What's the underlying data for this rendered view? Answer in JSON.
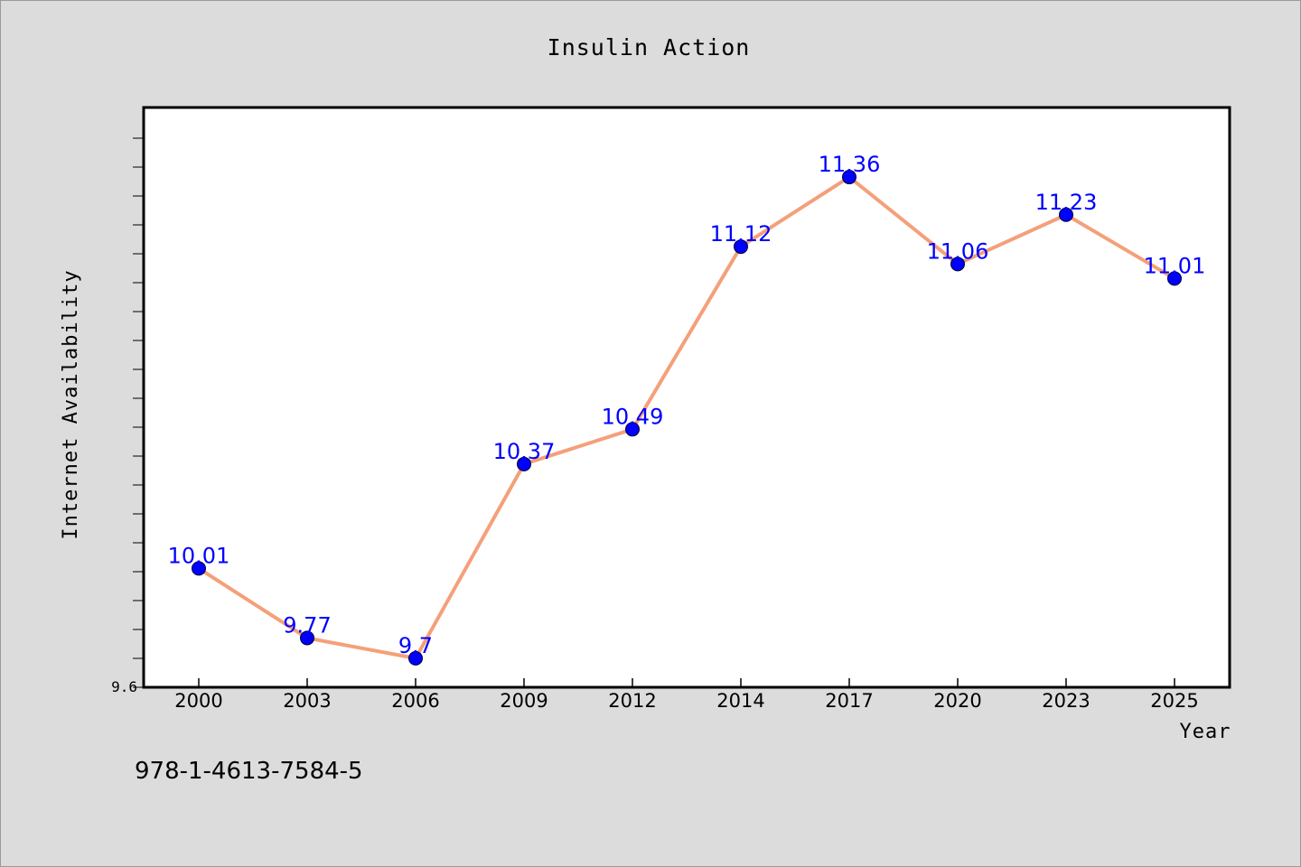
{
  "chart_data": {
    "type": "line",
    "title": "Insulin Action",
    "xlabel": "Year",
    "ylabel": "Internet Availability",
    "categories": [
      "2000",
      "2003",
      "2006",
      "2009",
      "2012",
      "2014",
      "2017",
      "2020",
      "2023",
      "2025"
    ],
    "series": [
      {
        "values": [
          10.01,
          9.77,
          9.7,
          10.37,
          10.49,
          11.12,
          11.36,
          11.06,
          11.23,
          11.01
        ],
        "labels": [
          "10.01",
          "9.77",
          "9.7",
          "10.37",
          "10.49",
          "11.12",
          "11.36",
          "11.06",
          "11.23",
          "11.01"
        ],
        "line_color": "#f4a07a",
        "marker_color": "#0000ff"
      }
    ],
    "ylim": [
      9.6,
      11.6
    ],
    "y_tick_labels": [
      "9.6"
    ],
    "grid": false,
    "legend": "none"
  },
  "footer": {
    "isbn": "978-1-4613-7584-5"
  },
  "colors": {
    "background": "#dcdcdc",
    "plot_background": "#ffffff",
    "line": "#f4a07a",
    "marker": "#0000ff",
    "data_label": "#0000ff"
  }
}
